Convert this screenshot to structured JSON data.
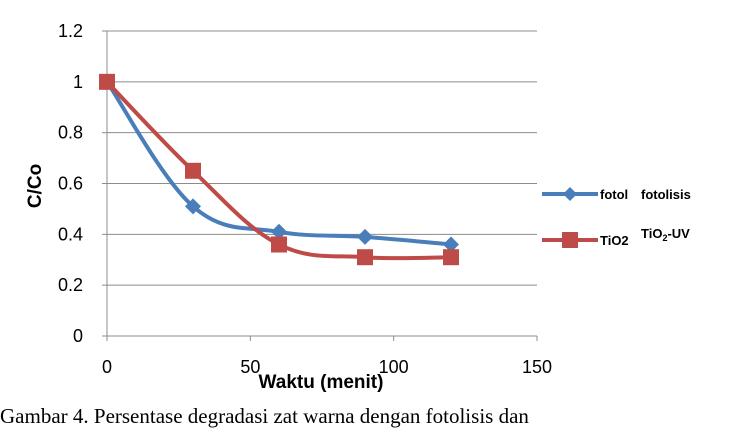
{
  "chart_data": {
    "type": "line",
    "xlabel": "Waktu (menit)",
    "ylabel": "C/Co",
    "xlim": [
      0,
      150
    ],
    "ylim": [
      0,
      1.2
    ],
    "x_ticks": [
      "0",
      "50",
      "100",
      "150"
    ],
    "y_ticks": [
      "0",
      "0.2",
      "0.4",
      "0.6",
      "0.8",
      "1",
      "1.2"
    ],
    "grid": "horizontal",
    "legend_position": "right",
    "series": [
      {
        "name": "fotol",
        "label": "fotolisis",
        "color": "#4a7ebb",
        "marker": "diamond",
        "x": [
          0,
          30,
          60,
          90,
          120
        ],
        "y": [
          1.0,
          0.51,
          0.41,
          0.39,
          0.36
        ]
      },
      {
        "name": "TiO2",
        "label_main": "TiO",
        "label_sub": "2",
        "label_suffix": "-UV",
        "color": "#be4b48",
        "marker": "square",
        "x": [
          0,
          30,
          60,
          90,
          120
        ],
        "y": [
          1.0,
          0.65,
          0.36,
          0.31,
          0.31
        ]
      }
    ]
  },
  "caption": "Gambar 4. Persentase degradasi zat warna dengan fotolisis dan"
}
